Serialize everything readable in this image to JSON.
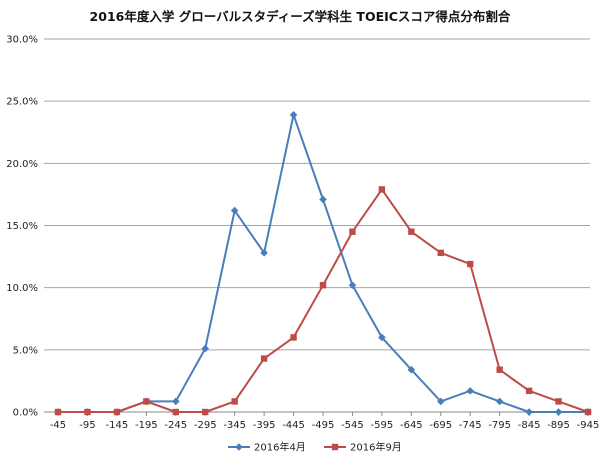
{
  "chart_data": {
    "type": "line",
    "title": "2016年度入学 グローバルスタディーズ学科生 TOEICスコア得点分布割合",
    "xlabel": "",
    "ylabel": "",
    "categories": [
      "-45",
      "-95",
      "-145",
      "-195",
      "-245",
      "-295",
      "-345",
      "-395",
      "-445",
      "-495",
      "-545",
      "-595",
      "-645",
      "-695",
      "-745",
      "-795",
      "-845",
      "-895",
      "-945"
    ],
    "y_ticks": [
      "0.0%",
      "5.0%",
      "10.0%",
      "15.0%",
      "20.0%",
      "25.0%",
      "30.0%"
    ],
    "ylim": [
      0,
      30
    ],
    "grid": "horizontal",
    "legend_position": "bottom",
    "series": [
      {
        "name": "2016年4月",
        "color": "#4a7ebb",
        "marker": "diamond",
        "values": [
          0.0,
          0.0,
          0.0,
          0.85,
          0.85,
          5.1,
          16.2,
          12.8,
          23.9,
          17.1,
          10.2,
          6.0,
          3.4,
          0.85,
          1.7,
          0.85,
          0.0,
          0.0,
          0.0
        ]
      },
      {
        "name": "2016年9月",
        "color": "#be4b48",
        "marker": "square",
        "values": [
          0.0,
          0.0,
          0.0,
          0.85,
          0.0,
          0.0,
          0.85,
          4.3,
          6.0,
          10.2,
          14.5,
          17.9,
          14.5,
          12.8,
          11.9,
          3.4,
          1.7,
          0.85,
          0.0
        ]
      }
    ]
  }
}
